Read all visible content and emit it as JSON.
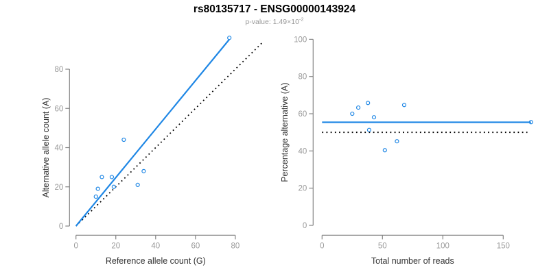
{
  "header": {
    "title": "rs80135717 - ENSG00000143924",
    "subtitle_prefix": "p-value: 1.49×10",
    "subtitle_exponent": "-2"
  },
  "colors": {
    "accent_blue": "#1F87E5",
    "axis_line": "#848484",
    "tick_label": "#999999",
    "axis_title": "#333333",
    "dotted_line": "#000000"
  },
  "chart_data": [
    {
      "type": "scatter",
      "xlabel": "Reference allele count (G)",
      "ylabel": "Alternative allele count (A)",
      "xticks": [
        0,
        20,
        40,
        60,
        80
      ],
      "yticks": [
        0,
        20,
        40,
        60,
        80
      ],
      "xlim": [
        0,
        95
      ],
      "ylim": [
        0,
        100
      ],
      "grid": false,
      "points": [
        [
          10,
          15
        ],
        [
          11,
          19
        ],
        [
          13,
          25
        ],
        [
          18,
          25
        ],
        [
          19,
          20
        ],
        [
          24,
          44
        ],
        [
          31,
          21
        ],
        [
          34,
          28
        ],
        [
          77,
          96
        ]
      ],
      "fit_line": {
        "x1": 0,
        "y1": 0,
        "x2": 77,
        "y2": 95.2
      },
      "dotted_line": {
        "x1": 0,
        "y1": 0,
        "x2": 94,
        "y2": 94
      }
    },
    {
      "type": "scatter",
      "xlabel": "Total number of reads",
      "ylabel": "Percentage alternative (A)",
      "xticks": [
        0,
        50,
        100,
        150
      ],
      "yticks": [
        0,
        20,
        40,
        60,
        80,
        100
      ],
      "xlim": [
        0,
        175
      ],
      "ylim": [
        0,
        100
      ],
      "grid": false,
      "points": [
        [
          25,
          60
        ],
        [
          30,
          63.3
        ],
        [
          38,
          65.8
        ],
        [
          39,
          51.3
        ],
        [
          43,
          58.1
        ],
        [
          52,
          40.4
        ],
        [
          62,
          45.2
        ],
        [
          68,
          64.7
        ],
        [
          173,
          55.5
        ]
      ],
      "fit_line": {
        "x1": 0,
        "y1": 55.4,
        "x2": 173,
        "y2": 55.4
      },
      "dotted_line": {
        "x1": 0,
        "y1": 50,
        "x2": 170,
        "y2": 50
      }
    }
  ]
}
